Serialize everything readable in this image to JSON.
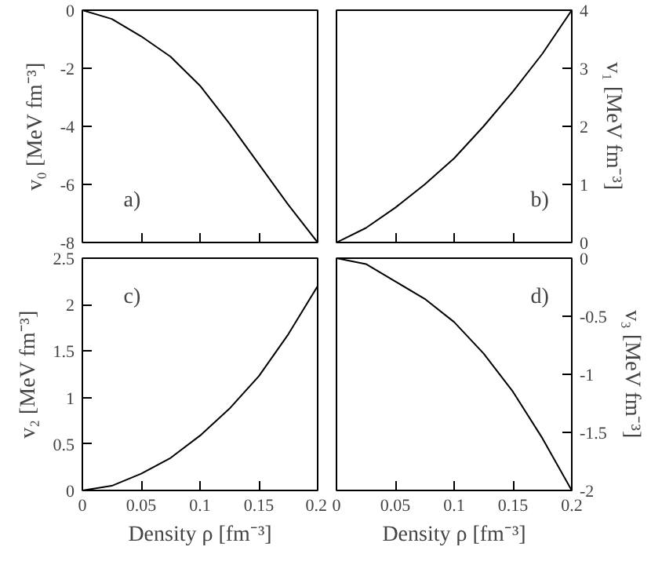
{
  "chart_data": [
    {
      "type": "line",
      "ylabel": "v₀ [MeV fm⁻³]",
      "annotations": [
        "a)"
      ],
      "x": [
        0,
        0.025,
        0.05,
        0.075,
        0.1,
        0.125,
        0.15,
        0.175,
        0.2
      ],
      "series": [
        {
          "color": "#000000",
          "values": [
            0,
            -0.3,
            -0.9,
            -1.6,
            -2.6,
            -3.9,
            -5.3,
            -6.7,
            -8
          ]
        }
      ],
      "xlim": [
        0,
        0.2
      ],
      "xticks": [
        0,
        0.05,
        0.1,
        0.15,
        0.2
      ],
      "ylim": [
        -8,
        0
      ],
      "yticks": [
        0,
        -2,
        -4,
        -6,
        -8
      ],
      "tick_labels": "y"
    },
    {
      "type": "line",
      "ylabel": "v₁ [MeV fm⁻³]",
      "annotations": [
        "b)"
      ],
      "x": [
        0,
        0.025,
        0.05,
        0.075,
        0.1,
        0.125,
        0.15,
        0.175,
        0.2
      ],
      "series": [
        {
          "color": "#000000",
          "values": [
            0,
            0.25,
            0.6,
            1.0,
            1.45,
            2.0,
            2.6,
            3.25,
            4.0
          ]
        }
      ],
      "xlim": [
        0,
        0.2
      ],
      "xticks": [
        0,
        0.05,
        0.1,
        0.15,
        0.2
      ],
      "ylim": [
        0,
        4
      ],
      "yticks": [
        0,
        1,
        2,
        3,
        4
      ],
      "tick_labels": "y"
    },
    {
      "type": "line",
      "xlabel": "Density ρ [fm⁻³]",
      "ylabel": "v₂ [MeV fm⁻³]",
      "annotations": [
        "c)"
      ],
      "x": [
        0,
        0.025,
        0.05,
        0.075,
        0.1,
        0.125,
        0.15,
        0.175,
        0.2
      ],
      "series": [
        {
          "color": "#000000",
          "values": [
            0,
            0.05,
            0.18,
            0.35,
            0.59,
            0.88,
            1.23,
            1.68,
            2.2
          ]
        }
      ],
      "xlim": [
        0,
        0.2
      ],
      "xticks": [
        0,
        0.05,
        0.1,
        0.15,
        0.2
      ],
      "ylim": [
        0,
        2.5
      ],
      "yticks": [
        0,
        0.5,
        1,
        1.5,
        2,
        2.5
      ]
    },
    {
      "type": "line",
      "xlabel": "Density ρ [fm⁻³]",
      "ylabel": "v₃ [MeV fm⁻³]",
      "annotations": [
        "d)"
      ],
      "x": [
        0,
        0.025,
        0.05,
        0.075,
        0.1,
        0.125,
        0.15,
        0.175,
        0.2
      ],
      "series": [
        {
          "color": "#000000",
          "values": [
            0,
            -0.05,
            -0.2,
            -0.35,
            -0.55,
            -0.82,
            -1.15,
            -1.55,
            -2
          ]
        }
      ],
      "xlim": [
        0,
        0.2
      ],
      "xticks": [
        0,
        0.05,
        0.1,
        0.15,
        0.2
      ],
      "ylim": [
        -2,
        0
      ],
      "yticks": [
        0,
        -0.5,
        -1,
        -1.5,
        -2
      ]
    }
  ]
}
